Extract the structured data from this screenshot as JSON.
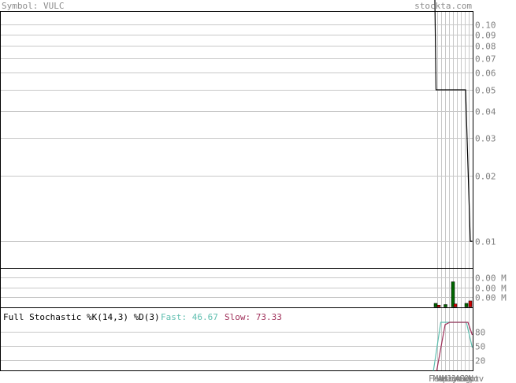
{
  "header": {
    "symbol_label": "Symbol: VULC",
    "site": "stockta.com"
  },
  "colors": {
    "header_text": "#8c8c8c",
    "tick_text": "#808080",
    "grid": "#c8c8c8",
    "frame": "#000000",
    "price_line": "#000000",
    "volume_up": "#006600",
    "volume_down": "#cc0000",
    "fast_line": "#5fbfb0",
    "slow_line": "#a0305a"
  },
  "chart_data": [
    {
      "type": "line",
      "panel": "price",
      "yscale": "log",
      "ylim": [
        0.0075,
        0.115
      ],
      "yticks": [
        "0.10",
        "0.09",
        "0.08",
        "0.07",
        "0.06",
        "0.05",
        "0.04",
        "0.03",
        "0.02",
        "0.01"
      ],
      "x_months": [
        "Feb",
        "Mar",
        "Apr",
        "May",
        "Jun",
        "Jul",
        "Aug",
        "Sep",
        "Oct",
        "Nov"
      ],
      "series": [
        {
          "points": [
            {
              "m": 0.0,
              "v": 0.13
            },
            {
              "m": 0.3,
              "v": 0.05
            },
            {
              "m": 7.8,
              "v": 0.05
            },
            {
              "m": 9.0,
              "v": 0.01
            },
            {
              "m": 9.5,
              "v": 0.01
            }
          ]
        }
      ]
    },
    {
      "type": "bar",
      "panel": "volume",
      "yticks": [
        "0.00 M",
        "0.00 M",
        "0.00 M"
      ],
      "bars": [
        {
          "m": 0.2,
          "v": 0.12,
          "dir": "up"
        },
        {
          "m": 1.0,
          "v": 0.06,
          "dir": "down"
        },
        {
          "m": 2.7,
          "v": 0.08,
          "dir": "up"
        },
        {
          "m": 4.6,
          "v": 0.84,
          "dir": "up"
        },
        {
          "m": 5.2,
          "v": 0.1,
          "dir": "down"
        },
        {
          "m": 8.0,
          "v": 0.12,
          "dir": "up"
        },
        {
          "m": 9.0,
          "v": 0.2,
          "dir": "down"
        }
      ]
    },
    {
      "type": "line",
      "panel": "stochastic",
      "title": "Full Stochastic %K(14,3) %D(3)",
      "ylim": [
        0,
        100
      ],
      "yticks": [
        "80",
        "50",
        "20"
      ],
      "fast_label": "Fast: 46.67",
      "slow_label": "Slow: 73.33",
      "series": [
        {
          "name": "Fast",
          "points": [
            {
              "m": -0.5,
              "v": -10
            },
            {
              "m": 1.5,
              "v": 100
            },
            {
              "m": 8.0,
              "v": 100
            },
            {
              "m": 9.5,
              "v": 46.67
            }
          ]
        },
        {
          "name": "Slow",
          "points": [
            {
              "m": 0.3,
              "v": -10
            },
            {
              "m": 2.6,
              "v": 95
            },
            {
              "m": 3.8,
              "v": 100
            },
            {
              "m": 8.4,
              "v": 100
            },
            {
              "m": 9.5,
              "v": 73.33
            }
          ]
        }
      ]
    }
  ]
}
